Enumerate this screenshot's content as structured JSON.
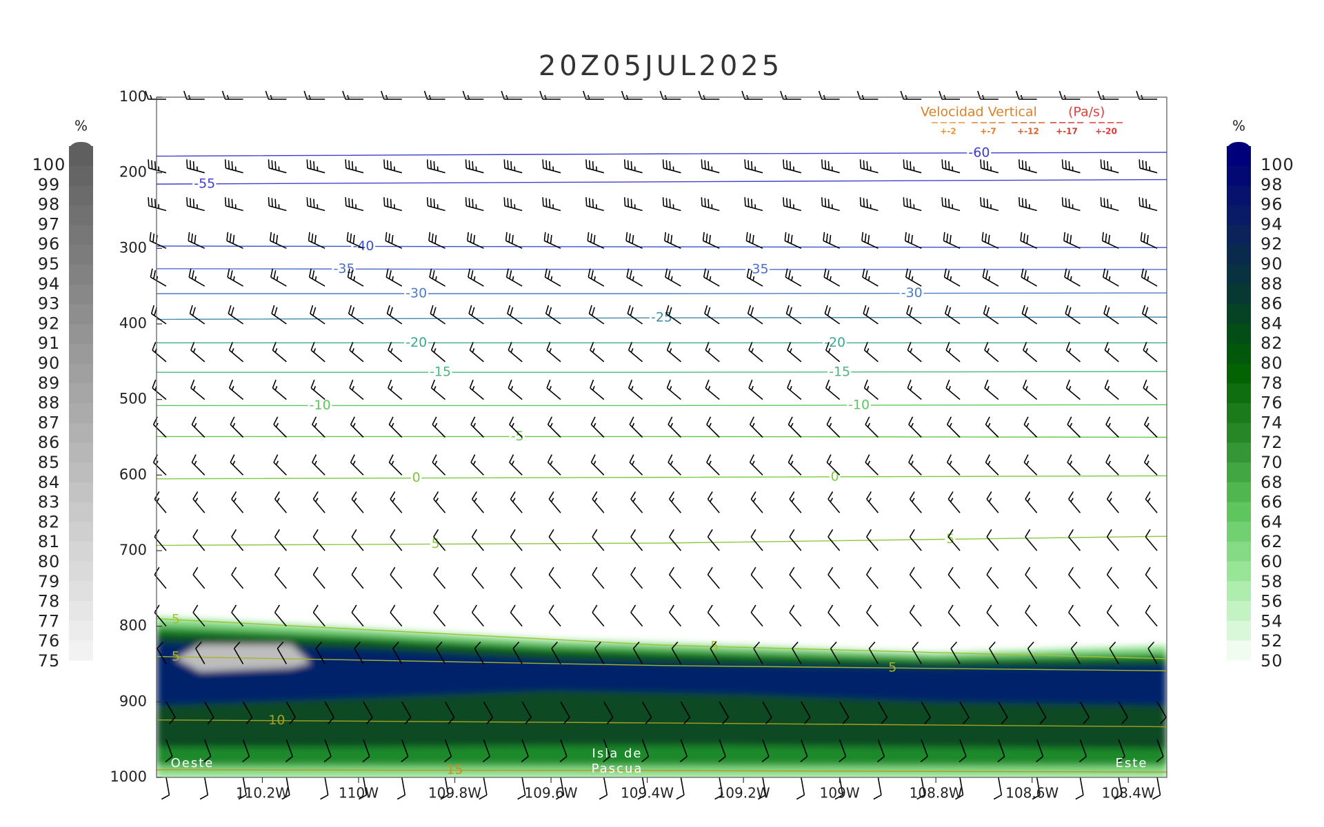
{
  "chart_data": {
    "type": "cross-section",
    "title": "20Z05JUL2025",
    "xlim": [
      -110.42,
      -108.32
    ],
    "xticks": [
      {
        "value": -110.2,
        "label": "110.2W"
      },
      {
        "value": -110.0,
        "label": "110W"
      },
      {
        "value": -109.8,
        "label": "109.8W"
      },
      {
        "value": -109.6,
        "label": "109.6W"
      },
      {
        "value": -109.4,
        "label": "109.4W"
      },
      {
        "value": -109.2,
        "label": "109.2W"
      },
      {
        "value": -109.0,
        "label": "109W"
      },
      {
        "value": -108.8,
        "label": "108.8W"
      },
      {
        "value": -108.6,
        "label": "108.6W"
      },
      {
        "value": -108.4,
        "label": "108.4W"
      }
    ],
    "ylim": [
      100,
      1000
    ],
    "yticks": [
      100,
      200,
      300,
      400,
      500,
      600,
      700,
      800,
      900,
      1000
    ],
    "contour_x": [
      -110.42,
      -109.37,
      -108.32
    ],
    "contours": [
      {
        "level": -60,
        "color": "#3a3ad0",
        "p": [
          178,
          175,
          173
        ],
        "label_x": [
          -108.71
        ]
      },
      {
        "level": -55,
        "color": "#4040d0",
        "p": [
          215,
          212,
          209
        ],
        "label_x": [
          -110.32
        ]
      },
      {
        "level": -40,
        "color": "#3a4fd0",
        "p": [
          297,
          298,
          299
        ],
        "label_x": [
          -109.99
        ]
      },
      {
        "level": -35,
        "color": "#4a6ad0",
        "p": [
          327,
          328,
          328
        ],
        "label_x": [
          -110.03,
          -109.17
        ]
      },
      {
        "level": -30,
        "color": "#4a7cc8",
        "p": [
          360,
          360,
          359
        ],
        "label_x": [
          -109.88,
          -108.85
        ]
      },
      {
        "level": -25,
        "color": "#3c8aa8",
        "p": [
          394,
          392,
          391
        ],
        "label_x": [
          -109.37
        ]
      },
      {
        "level": -20,
        "color": "#3aa88a",
        "p": [
          425,
          425,
          425
        ],
        "label_x": [
          -109.88,
          -109.01
        ]
      },
      {
        "level": -15,
        "color": "#4ab87a",
        "p": [
          464,
          464,
          463
        ],
        "label_x": [
          -109.83,
          -109.0
        ]
      },
      {
        "level": -10,
        "color": "#5ac85a",
        "p": [
          508,
          508,
          507
        ],
        "label_x": [
          -110.08,
          -108.96
        ]
      },
      {
        "level": -5,
        "color": "#66c84a",
        "p": [
          549,
          549,
          550
        ],
        "label_x": [
          -109.67
        ]
      },
      {
        "level": 0,
        "color": "#7ac83c",
        "p": [
          605,
          603,
          601
        ],
        "label_x": [
          -109.88,
          -109.01
        ]
      },
      {
        "level": 5,
        "color": "#8cc83a",
        "p": [
          693,
          690,
          681
        ],
        "label_x": [
          -109.84,
          -108.77
        ]
      },
      {
        "level": 5,
        "color": "#a0c030",
        "p": [
          790,
          825,
          843
        ],
        "label_x": [
          -110.38,
          -109.26
        ]
      },
      {
        "level": 5,
        "color": "#a8b428",
        "p": [
          840,
          852,
          859
        ],
        "label_x": [
          -110.38,
          -108.89
        ]
      },
      {
        "level": 10,
        "color": "#a8a020",
        "p": [
          924,
          928,
          933
        ],
        "label_x": [
          -110.17
        ]
      },
      {
        "level": 15,
        "color": "#c89020",
        "p": [
          990,
          991,
          993
        ],
        "label_x": [
          -109.8
        ]
      }
    ],
    "shading": [
      {
        "color": "#86dc86",
        "x": [
          -110.42,
          -110.0,
          -109.6,
          -109.2,
          -108.8,
          -108.32
        ],
        "top": [
          788,
          803,
          818,
          826,
          836,
          826
        ],
        "bottom": [
          1000,
          1000,
          1000,
          1000,
          1000,
          1000
        ]
      },
      {
        "color": "#1f8a2a",
        "x": [
          -110.42,
          -110.0,
          -109.6,
          -109.2,
          -108.8,
          -108.32
        ],
        "top": [
          800,
          812,
          826,
          834,
          842,
          836
        ],
        "bottom": [
          985,
          985,
          985,
          985,
          985,
          985
        ]
      },
      {
        "color": "#0b4a22",
        "x": [
          -110.42,
          -110.0,
          -109.6,
          -109.2,
          -108.8,
          -108.32
        ],
        "top": [
          810,
          820,
          834,
          842,
          848,
          844
        ],
        "bottom": [
          960,
          960,
          958,
          958,
          960,
          962
        ]
      },
      {
        "color": "#06246a",
        "x": [
          -110.42,
          -110.0,
          -109.6,
          -109.2,
          -108.8,
          -108.32
        ],
        "top": [
          822,
          830,
          845,
          852,
          855,
          852
        ],
        "bottom": [
          905,
          895,
          885,
          890,
          900,
          905
        ]
      },
      {
        "color": "#bdbdbd",
        "x": [
          -110.38,
          -110.33,
          -110.14,
          -110.1
        ],
        "top": [
          843,
          824,
          824,
          849
        ],
        "bottom": [
          843,
          860,
          855,
          849
        ]
      }
    ],
    "barbs": {
      "x": [
        -110.4,
        -110.32,
        -110.24,
        -110.15,
        -110.07,
        -109.99,
        -109.91,
        -109.82,
        -109.74,
        -109.66,
        -109.58,
        -109.49,
        -109.41,
        -109.33,
        -109.25,
        -109.16,
        -109.08,
        -109.0,
        -108.92,
        -108.83,
        -108.75,
        -108.67,
        -108.59,
        -108.5,
        -108.42,
        -108.34
      ],
      "levels": [
        100,
        200,
        250,
        300,
        350,
        400,
        450,
        500,
        550,
        600,
        650,
        700,
        750,
        800,
        850,
        900,
        950,
        1000
      ],
      "dir": [
        270,
        285,
        285,
        295,
        300,
        305,
        310,
        310,
        315,
        315,
        320,
        320,
        320,
        320,
        330,
        150,
        160,
        170
      ],
      "speed": [
        15,
        35,
        35,
        30,
        25,
        20,
        15,
        15,
        15,
        15,
        15,
        10,
        10,
        10,
        10,
        10,
        10,
        10
      ]
    },
    "colorbars": [
      {
        "side": "left",
        "unit": "%",
        "ticks": [
          100,
          99,
          98,
          97,
          96,
          95,
          94,
          93,
          92,
          91,
          90,
          89,
          88,
          87,
          86,
          85,
          84,
          83,
          82,
          81,
          80,
          79,
          78,
          77,
          76,
          75
        ],
        "colors": [
          "#5f5f5f",
          "#f2f2f2"
        ]
      },
      {
        "side": "right",
        "unit": "%",
        "ticks": [
          100,
          98,
          96,
          94,
          92,
          90,
          88,
          86,
          84,
          82,
          80,
          78,
          76,
          74,
          72,
          70,
          68,
          66,
          64,
          62,
          60,
          58,
          56,
          54,
          52,
          50
        ],
        "colors": [
          "#00007a",
          "#0a2060",
          "#073a30",
          "#006000",
          "#2a8a2a",
          "#5cc45c",
          "#a0eaa0",
          "#effcef"
        ]
      }
    ],
    "vv_legend": {
      "title": "Velocidad Vertical",
      "unit": "(Pa/s)",
      "items": [
        {
          "label": "+-2",
          "color": "#e8963a"
        },
        {
          "label": "+-7",
          "color": "#e57a30"
        },
        {
          "label": "+-12",
          "color": "#d9602a"
        },
        {
          "label": "+-17",
          "color": "#c84030"
        },
        {
          "label": "+-20",
          "color": "#e03838"
        }
      ]
    },
    "annotations": {
      "west": "Oeste",
      "island": [
        "Isla de",
        "Pascua"
      ],
      "east": "Este"
    }
  }
}
